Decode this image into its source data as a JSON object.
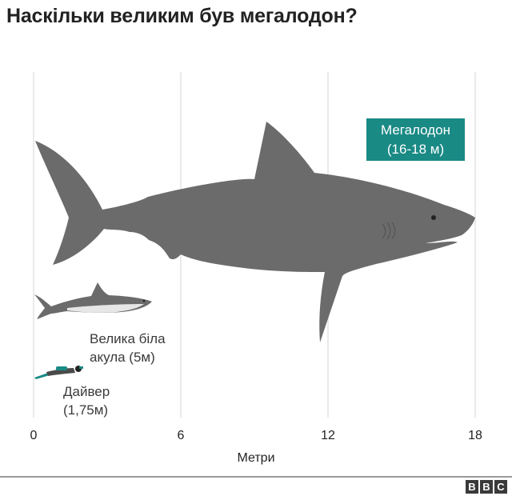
{
  "title": "Наскільки великим був мегалодон?",
  "chart_data": {
    "type": "bar",
    "title": "Наскільки великим був мегалодон?",
    "xlabel": "Метри",
    "ylabel": "",
    "xlim": [
      0,
      18
    ],
    "xticks": [
      "0",
      "6",
      "12",
      "18"
    ],
    "grid": true,
    "categories": [
      "Мегалодон",
      "Велика біла акула",
      "Дайвер"
    ],
    "values": [
      18,
      5,
      1.75
    ],
    "labels": [
      [
        "Мегалодон",
        "(16-18 м)"
      ],
      [
        "Велика біла",
        "акула (5м)"
      ],
      [
        "Дайвер",
        "(1,75м)"
      ]
    ]
  },
  "colors": {
    "megalodon": "#6b6b6b",
    "label_box": "#1a8a85",
    "white_shark": "#6b6b6b",
    "white_shark_belly": "#e6e6e6",
    "diver": "#1a8a85",
    "grid": "#dddddd"
  },
  "footer": {
    "logo": [
      "B",
      "B",
      "C"
    ]
  }
}
